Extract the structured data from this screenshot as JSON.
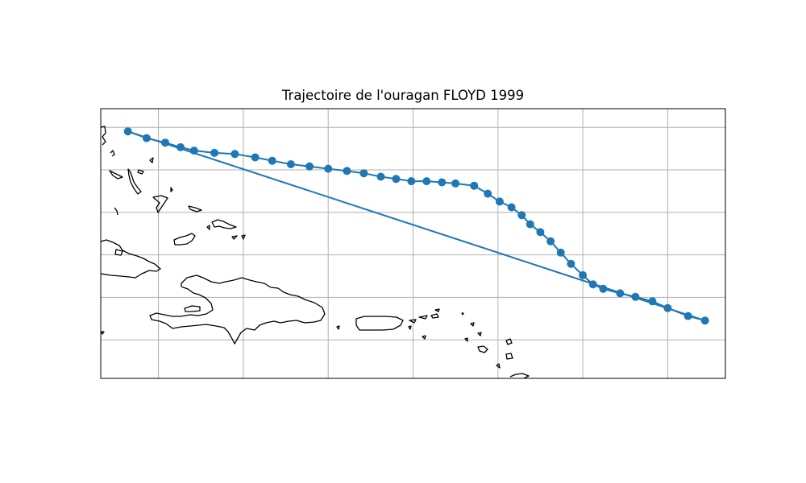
{
  "title": "Trajectoire de l'ouragan FLOYD 1999",
  "colors": {
    "track": "#1f77b4",
    "grid": "#b0b0b0",
    "coast": "#000000",
    "frame": "#000000"
  },
  "chart_data": {
    "type": "line",
    "title": "Trajectoire de l'ouragan FLOYD 1999",
    "xlabel": "",
    "ylabel": "",
    "grid": true,
    "marker": "circle",
    "xlim": [
      -79.2,
      -60.8
    ],
    "ylim": [
      15.8,
      27.7
    ],
    "x": [
      -78.4,
      -77.85,
      -77.3,
      -76.85,
      -76.45,
      -75.85,
      -75.25,
      -74.65,
      -74.15,
      -73.6,
      -73.05,
      -72.5,
      -71.95,
      -71.45,
      -70.95,
      -70.5,
      -70.05,
      -69.6,
      -69.15,
      -68.75,
      -68.2,
      -67.8,
      -67.45,
      -67.1,
      -66.8,
      -66.55,
      -66.25,
      -65.95,
      -65.65,
      -65.35,
      -65.0,
      -64.7,
      -64.4,
      -63.9,
      -63.45,
      -62.95,
      -62.5,
      -61.9,
      -61.4
    ],
    "y": [
      26.7,
      26.4,
      26.2,
      26.0,
      25.85,
      25.75,
      25.7,
      25.55,
      25.4,
      25.25,
      25.15,
      25.05,
      24.95,
      24.85,
      24.7,
      24.6,
      24.5,
      24.5,
      24.45,
      24.4,
      24.3,
      23.95,
      23.6,
      23.35,
      23.0,
      22.6,
      22.25,
      21.85,
      21.35,
      20.85,
      20.35,
      19.95,
      19.75,
      19.55,
      19.4,
      19.2,
      18.9,
      18.55,
      18.35
    ],
    "closing_segment": {
      "from": [
        -61.4,
        18.35
      ],
      "to": [
        -78.4,
        26.7
      ]
    }
  }
}
